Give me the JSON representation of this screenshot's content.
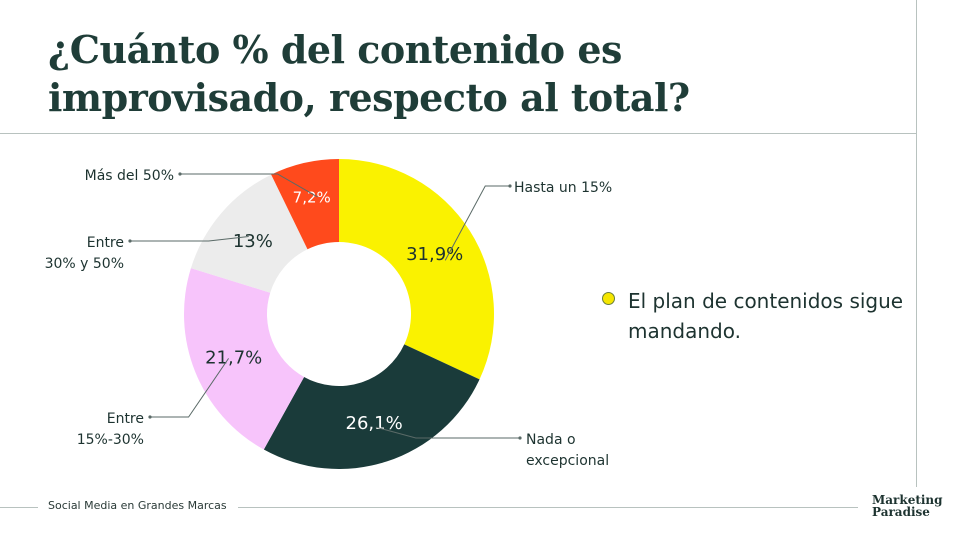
{
  "title": "¿Cuánto % del contenido es improvisado, respecto al total?",
  "note": "El plan de contenidos sigue mandando.",
  "footer": {
    "text": "Social Media en Grandes Marcas"
  },
  "brand": {
    "line1": "Marketing",
    "line2": "Paradise"
  },
  "colors": {
    "yellow": "#faf200",
    "dark_green": "#1a3b3a",
    "pink": "#f7c4fb",
    "light_gray": "#ececec",
    "orange_red": "#ff4a1c"
  },
  "chart_data": {
    "type": "pie",
    "donut": true,
    "slices": [
      {
        "label": "Hasta un 15%",
        "value": 31.9,
        "value_label": "31,9%",
        "color": "#faf200",
        "label_color": "#1d3330"
      },
      {
        "label": "Nada o excepcional",
        "value": 26.1,
        "value_label": "26,1%",
        "color": "#1a3b3a",
        "label_color": "#ffffff"
      },
      {
        "label": "Entre 15%-30%",
        "value": 21.7,
        "value_label": "21,7%",
        "color": "#f7c4fb",
        "label_color": "#1d3330"
      },
      {
        "label": "Entre 30% y 50%",
        "value": 13,
        "value_label": "13%",
        "color": "#ececec",
        "label_color": "#1d3330"
      },
      {
        "label": "Más del 50%",
        "value": 7.2,
        "value_label": "7,2%",
        "color": "#ff4a1c",
        "label_color": "#ffffff"
      }
    ],
    "callout_lines": [
      [
        "Hasta un 15%"
      ],
      [
        "Nada o",
        "excepcional"
      ],
      [
        "Entre",
        "15%-30%"
      ],
      [
        "Entre",
        "30% y 50%"
      ],
      [
        "Más del 50%"
      ]
    ]
  }
}
